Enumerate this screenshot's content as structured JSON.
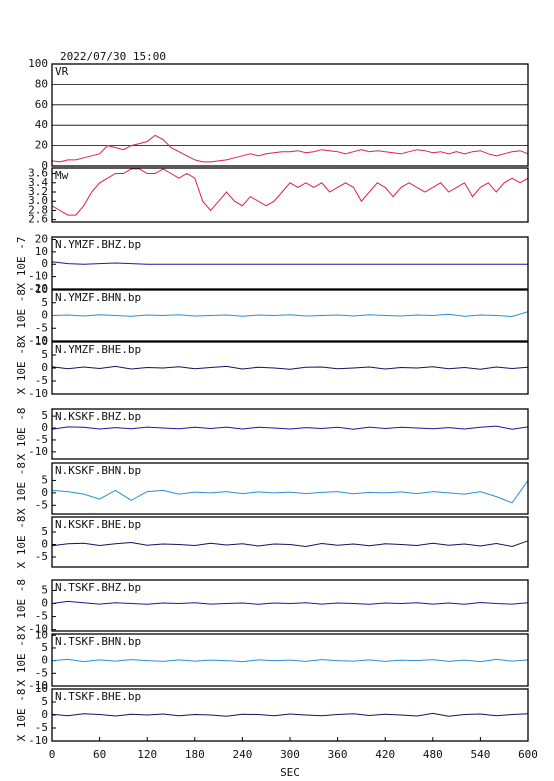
{
  "title": "2022/07/30 15:00",
  "chart_data": [
    {
      "type": "line",
      "title": "VR",
      "grid": true,
      "x": [
        0,
        10,
        20,
        30,
        40,
        50,
        60,
        70,
        80,
        90,
        100,
        110,
        120,
        130,
        140,
        150,
        160,
        170,
        180,
        190,
        200,
        210,
        220,
        230,
        240,
        250,
        260,
        270,
        280,
        290,
        300,
        310,
        320,
        330,
        340,
        350,
        360,
        370,
        380,
        390,
        400,
        410,
        420,
        430,
        440,
        450,
        460,
        470,
        480,
        490,
        500,
        510,
        520,
        530,
        540,
        550,
        560,
        570,
        580,
        590,
        600
      ],
      "series": [
        {
          "color": "#e0204a",
          "values": [
            5,
            4,
            6,
            6,
            8,
            10,
            12,
            20,
            18,
            16,
            20,
            22,
            24,
            30,
            26,
            18,
            14,
            10,
            6,
            4,
            4,
            5,
            6,
            8,
            10,
            12,
            10,
            12,
            13,
            14,
            14,
            15,
            13,
            14,
            16,
            15,
            14,
            12,
            14,
            16,
            14,
            15,
            14,
            13,
            12,
            14,
            16,
            15,
            13,
            14,
            12,
            14,
            12,
            14,
            15,
            12,
            10,
            12,
            14,
            15,
            12
          ]
        }
      ],
      "ylim": [
        0,
        100
      ],
      "yticks": [
        0,
        20,
        40,
        60,
        80,
        100
      ]
    },
    {
      "type": "line",
      "title": "Mw",
      "grid": false,
      "x": [
        0,
        10,
        20,
        30,
        40,
        50,
        60,
        70,
        80,
        90,
        100,
        110,
        120,
        130,
        140,
        150,
        160,
        170,
        180,
        190,
        200,
        210,
        220,
        230,
        240,
        250,
        260,
        270,
        280,
        290,
        300,
        310,
        320,
        330,
        340,
        350,
        360,
        370,
        380,
        390,
        400,
        410,
        420,
        430,
        440,
        450,
        460,
        470,
        480,
        490,
        500,
        510,
        520,
        530,
        540,
        550,
        560,
        570,
        580,
        590,
        600
      ],
      "series": [
        {
          "color": "#e0204a",
          "values": [
            2.9,
            2.8,
            2.7,
            2.7,
            2.9,
            3.2,
            3.4,
            3.5,
            3.6,
            3.6,
            3.7,
            3.7,
            3.6,
            3.6,
            3.7,
            3.6,
            3.5,
            3.6,
            3.5,
            3.0,
            2.8,
            3.0,
            3.2,
            3.0,
            2.9,
            3.1,
            3.0,
            2.9,
            3.0,
            3.2,
            3.4,
            3.3,
            3.4,
            3.3,
            3.4,
            3.2,
            3.3,
            3.4,
            3.3,
            3.0,
            3.2,
            3.4,
            3.3,
            3.1,
            3.3,
            3.4,
            3.3,
            3.2,
            3.3,
            3.4,
            3.2,
            3.3,
            3.4,
            3.1,
            3.3,
            3.4,
            3.2,
            3.4,
            3.5,
            3.4,
            3.5
          ]
        }
      ],
      "ylim": [
        2.55,
        3.72
      ],
      "yticks": [
        {
          "value": 2.6,
          "label": "2.6"
        },
        {
          "value": 2.8,
          "label": "2.8"
        },
        {
          "value": 3.0,
          "label": "3.0"
        },
        {
          "value": 3.2,
          "label": "3.2"
        },
        {
          "value": 3.4,
          "label": "3.4"
        },
        {
          "value": 3.6,
          "label": "3.6"
        }
      ]
    },
    {
      "type": "line",
      "title": "N.YMZF.BHZ.bp",
      "ylabel": "X 10E -7",
      "x": [
        0,
        20,
        40,
        60,
        80,
        100,
        120,
        140,
        160,
        180,
        200,
        220,
        240,
        260,
        280,
        300,
        320,
        340,
        360,
        380,
        400,
        420,
        440,
        460,
        480,
        500,
        520,
        540,
        560,
        580,
        600
      ],
      "series": [
        {
          "color": "#1a1a9c",
          "values": [
            2,
            0.5,
            0,
            0.5,
            1,
            0.5,
            0,
            0,
            0,
            0,
            0,
            0,
            0,
            0,
            0,
            0,
            0,
            0,
            0,
            0,
            0,
            0,
            0,
            0,
            0,
            0,
            0,
            0,
            0,
            0,
            0
          ]
        }
      ],
      "ylim": [
        -20,
        22
      ],
      "yticks": [
        -20,
        -10,
        0,
        10,
        20
      ]
    },
    {
      "type": "line",
      "title": "N.YMZF.BHN.bp",
      "ylabel": "X 10E -8",
      "x": [
        0,
        20,
        40,
        60,
        80,
        100,
        120,
        140,
        160,
        180,
        200,
        220,
        240,
        260,
        280,
        300,
        320,
        340,
        360,
        380,
        400,
        420,
        440,
        460,
        480,
        500,
        520,
        540,
        560,
        580,
        600
      ],
      "series": [
        {
          "color": "#2a8fd4",
          "values": [
            0,
            0.2,
            -0.2,
            0.3,
            0,
            -0.3,
            0.2,
            0,
            0.3,
            -0.2,
            0,
            0.2,
            -0.3,
            0.2,
            0,
            0.3,
            -0.2,
            0,
            0.2,
            -0.2,
            0.3,
            0,
            -0.2,
            0.2,
            0,
            0.5,
            -0.3,
            0.2,
            0,
            -0.4,
            1.5
          ]
        }
      ],
      "ylim": [
        -10,
        10
      ],
      "yticks": [
        -10,
        -5,
        0,
        5,
        10
      ]
    },
    {
      "type": "line",
      "title": "N.YMZF.BHE.bp",
      "ylabel": "X 10E -8",
      "x": [
        0,
        20,
        40,
        60,
        80,
        100,
        120,
        140,
        160,
        180,
        200,
        220,
        240,
        260,
        280,
        300,
        320,
        340,
        360,
        380,
        400,
        420,
        440,
        460,
        480,
        500,
        520,
        540,
        560,
        580,
        600
      ],
      "series": [
        {
          "color": "#14145a",
          "values": [
            0.5,
            -0.3,
            0.4,
            -0.2,
            0.6,
            -0.4,
            0.2,
            0,
            0.5,
            -0.3,
            0.2,
            0.6,
            -0.4,
            0.3,
            0,
            -0.5,
            0.3,
            0.4,
            -0.3,
            0,
            0.4,
            -0.4,
            0.2,
            0,
            0.5,
            -0.3,
            0.2,
            -0.5,
            0.4,
            -0.2,
            0.3
          ]
        }
      ],
      "ylim": [
        -10,
        10
      ],
      "yticks": [
        -10,
        -5,
        0,
        5,
        10
      ]
    },
    {
      "type": "line",
      "title": "N.KSKF.BHZ.bp",
      "ylabel": "X 10E -8",
      "x": [
        0,
        20,
        40,
        60,
        80,
        100,
        120,
        140,
        160,
        180,
        200,
        220,
        240,
        260,
        280,
        300,
        320,
        340,
        360,
        380,
        400,
        420,
        440,
        460,
        480,
        500,
        520,
        540,
        560,
        580,
        600
      ],
      "series": [
        {
          "color": "#1a1a9c",
          "values": [
            -0.5,
            0.5,
            0.3,
            -0.4,
            0.2,
            -0.3,
            0.4,
            0,
            -0.3,
            0.3,
            -0.2,
            0.4,
            -0.4,
            0.3,
            0,
            -0.4,
            0.2,
            -0.2,
            0.3,
            -0.5,
            0.4,
            -0.2,
            0.3,
            0,
            -0.3,
            0.2,
            -0.4,
            0.3,
            0.8,
            -0.5,
            0.5
          ]
        }
      ],
      "ylim": [
        -13,
        8
      ],
      "yticks": [
        -10,
        -5,
        0,
        5
      ]
    },
    {
      "type": "line",
      "title": "N.KSKF.BHN.bp",
      "ylabel": "X 10E -8",
      "x": [
        0,
        20,
        40,
        60,
        80,
        100,
        120,
        140,
        160,
        180,
        200,
        220,
        240,
        260,
        280,
        300,
        320,
        340,
        360,
        380,
        400,
        420,
        440,
        460,
        480,
        500,
        520,
        540,
        560,
        580,
        600
      ],
      "series": [
        {
          "color": "#2a8fd4",
          "values": [
            1,
            0.5,
            -0.5,
            -2.5,
            1,
            -3,
            0.5,
            1,
            -0.5,
            0.3,
            0,
            0.5,
            -0.3,
            0.4,
            0,
            0.3,
            -0.3,
            0.2,
            0.5,
            -0.4,
            0.2,
            0,
            0.4,
            -0.3,
            0.5,
            0,
            -0.5,
            0.5,
            -1.5,
            -4,
            5
          ]
        }
      ],
      "ylim": [
        -8.5,
        12
      ],
      "yticks": [
        -5,
        0,
        5
      ]
    },
    {
      "type": "line",
      "title": "N.KSKF.BHE.bp",
      "ylabel": "X 10E -8",
      "x": [
        0,
        20,
        40,
        60,
        80,
        100,
        120,
        140,
        160,
        180,
        200,
        220,
        240,
        260,
        280,
        300,
        320,
        340,
        360,
        380,
        400,
        420,
        440,
        460,
        480,
        500,
        520,
        540,
        560,
        580,
        600
      ],
      "series": [
        {
          "color": "#14145a",
          "values": [
            -0.5,
            0.3,
            0.5,
            -0.4,
            0.3,
            0.8,
            -0.3,
            0.2,
            0,
            -0.4,
            0.5,
            -0.2,
            0.3,
            -0.6,
            0.2,
            0,
            -0.8,
            0.4,
            -0.3,
            0.2,
            -0.5,
            0.3,
            0,
            -0.4,
            0.5,
            -0.3,
            0.2,
            -0.6,
            0.4,
            -0.8,
            1.5
          ]
        }
      ],
      "ylim": [
        -9,
        11
      ],
      "yticks": [
        -5,
        0,
        5
      ]
    },
    {
      "type": "line",
      "title": "N.TSKF.BHZ.bp",
      "ylabel": "X 10E -8",
      "x": [
        0,
        20,
        40,
        60,
        80,
        100,
        120,
        140,
        160,
        180,
        200,
        220,
        240,
        260,
        280,
        300,
        320,
        340,
        360,
        380,
        400,
        420,
        440,
        460,
        480,
        500,
        520,
        540,
        560,
        580,
        600
      ],
      "series": [
        {
          "color": "#1a1a9c",
          "values": [
            0,
            0.8,
            0.3,
            -0.2,
            0.3,
            0,
            -0.3,
            0.2,
            0,
            0.3,
            -0.2,
            0,
            0.2,
            -0.3,
            0.2,
            0,
            0.3,
            -0.2,
            0.2,
            0,
            -0.3,
            0.2,
            0,
            0.3,
            -0.2,
            0.2,
            -0.3,
            0.4,
            0,
            -0.2,
            0.3
          ]
        }
      ],
      "ylim": [
        -10.5,
        9
      ],
      "yticks": [
        -10,
        -5,
        0,
        5
      ]
    },
    {
      "type": "line",
      "title": "N.TSKF.BHN.bp",
      "ylabel": "X 10E -8",
      "x": [
        0,
        20,
        40,
        60,
        80,
        100,
        120,
        140,
        160,
        180,
        200,
        220,
        240,
        260,
        280,
        300,
        320,
        340,
        360,
        380,
        400,
        420,
        440,
        460,
        480,
        500,
        520,
        540,
        560,
        580,
        600
      ],
      "series": [
        {
          "color": "#2a8fd4",
          "values": [
            0,
            0.5,
            -0.4,
            0.3,
            -0.2,
            0.4,
            0,
            -0.3,
            0.3,
            -0.2,
            0.2,
            0,
            -0.4,
            0.3,
            0,
            0.2,
            -0.3,
            0.4,
            0,
            -0.2,
            0.3,
            -0.3,
            0.2,
            0,
            0.4,
            -0.3,
            0.2,
            -0.4,
            0.5,
            -0.2,
            0.3
          ]
        }
      ],
      "ylim": [
        -10,
        10.5
      ],
      "yticks": [
        -10,
        -5,
        0,
        5,
        10
      ]
    },
    {
      "type": "line",
      "title": "N.TSKF.BHE.bp",
      "ylabel": "X 10E -8",
      "xlabel": "SEC",
      "x": [
        0,
        20,
        40,
        60,
        80,
        100,
        120,
        140,
        160,
        180,
        200,
        220,
        240,
        260,
        280,
        300,
        320,
        340,
        360,
        380,
        400,
        420,
        440,
        460,
        480,
        500,
        520,
        540,
        560,
        580,
        600
      ],
      "series": [
        {
          "color": "#14145a",
          "values": [
            0.3,
            -0.3,
            0.5,
            0.2,
            -0.4,
            0.3,
            0,
            0.4,
            -0.3,
            0.2,
            0,
            -0.5,
            0.3,
            0.2,
            -0.3,
            0.4,
            0,
            -0.3,
            0.2,
            0.5,
            -0.2,
            0.3,
            0,
            -0.4,
            0.6,
            -0.5,
            0.2,
            0.4,
            -0.3,
            0.2,
            0.5
          ]
        }
      ],
      "ylim": [
        -10,
        10
      ],
      "yticks": [
        -10,
        -5,
        0,
        5,
        10
      ],
      "xlim": [
        0,
        600
      ],
      "xticks": [
        0,
        60,
        120,
        180,
        240,
        300,
        360,
        420,
        480,
        540,
        600
      ]
    }
  ]
}
